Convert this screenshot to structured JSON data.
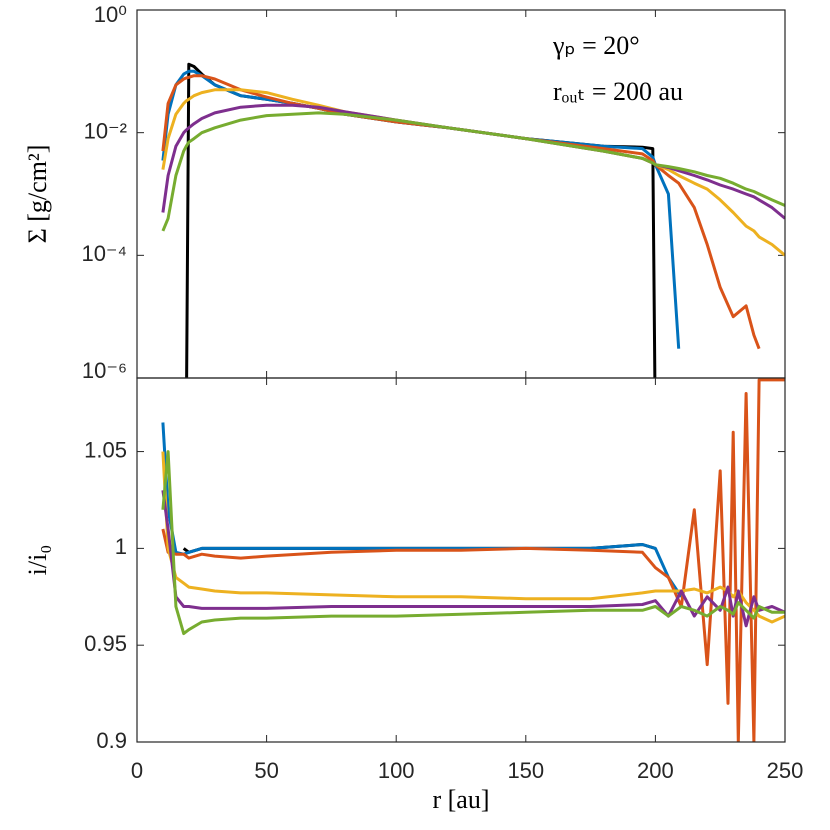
{
  "chart_data": [
    {
      "type": "line",
      "log": true,
      "ylabel": "Σ [g/cm²]",
      "annotations": [
        "γₚ = 20°",
        "rₒᵤₜ = 200 au"
      ],
      "xlim": [
        0,
        250
      ],
      "xticks": [
        0,
        50,
        100,
        150,
        200,
        250
      ],
      "ylim": [
        1e-06,
        1
      ],
      "yticks": [
        {
          "value": 1,
          "label": "10⁰"
        },
        {
          "value": 0.01,
          "label": "10⁻²"
        },
        {
          "value": 0.0001,
          "label": "10⁻⁴"
        },
        {
          "value": 1e-06,
          "label": "10⁻⁶"
        }
      ],
      "x": [
        10,
        12,
        15,
        18,
        19,
        20,
        22,
        25,
        30,
        40,
        50,
        60,
        70,
        80,
        100,
        120,
        150,
        180,
        195,
        199,
        200,
        205,
        209,
        215,
        220,
        225,
        230,
        235,
        238,
        240,
        245,
        250
      ],
      "series": [
        {
          "color": "#000000",
          "values": [
            null,
            null,
            null,
            null,
            1e-07,
            0.13,
            0.12,
            0.09,
            0.06,
            0.04,
            0.035,
            0.03,
            0.025,
            0.02,
            0.015,
            0.012,
            0.008,
            0.006,
            0.0058,
            0.0055,
            1e-07,
            null,
            null,
            null,
            null,
            null,
            null,
            null,
            null,
            null,
            null,
            null
          ]
        },
        {
          "color": "#0072bd",
          "values": [
            0.0035,
            0.02,
            0.06,
            0.09,
            0.095,
            0.1,
            0.1,
            0.085,
            0.06,
            0.04,
            0.035,
            0.03,
            0.025,
            0.02,
            0.015,
            0.012,
            0.008,
            0.006,
            0.0055,
            0.004,
            0.003,
            0.001,
            3e-06,
            null,
            null,
            null,
            null,
            null,
            null,
            null,
            null,
            null
          ]
        },
        {
          "color": "#d95319",
          "values": [
            0.005,
            0.03,
            0.06,
            0.075,
            0.078,
            0.08,
            0.085,
            0.085,
            0.075,
            0.05,
            0.038,
            0.03,
            0.025,
            0.02,
            0.015,
            0.012,
            0.008,
            0.0055,
            0.0045,
            0.0035,
            0.003,
            0.002,
            0.0015,
            0.0006,
            0.00015,
            3e-05,
            1e-05,
            1.5e-05,
            5e-06,
            3e-06,
            null,
            null
          ]
        },
        {
          "color": "#edb120",
          "values": [
            0.0025,
            0.008,
            0.02,
            0.03,
            0.033,
            0.035,
            0.04,
            0.045,
            0.05,
            0.05,
            0.045,
            0.035,
            0.028,
            0.022,
            0.016,
            0.012,
            0.008,
            0.005,
            0.0038,
            0.0032,
            0.003,
            0.0025,
            0.002,
            0.0015,
            0.0012,
            0.0008,
            0.0005,
            0.0003,
            0.00025,
            0.0002,
            0.00015,
            0.0001
          ]
        },
        {
          "color": "#7e2f8e",
          "values": [
            0.0005,
            0.002,
            0.006,
            0.01,
            0.011,
            0.012,
            0.014,
            0.017,
            0.021,
            0.026,
            0.028,
            0.028,
            0.026,
            0.022,
            0.016,
            0.012,
            0.008,
            0.005,
            0.0038,
            0.0032,
            0.003,
            0.0027,
            0.0024,
            0.002,
            0.0017,
            0.0014,
            0.0012,
            0.001,
            0.0009,
            0.0008,
            0.0006,
            0.0004
          ]
        },
        {
          "color": "#77ac30",
          "values": [
            0.00025,
            0.0004,
            0.002,
            0.005,
            0.006,
            0.007,
            0.008,
            0.01,
            0.012,
            0.016,
            0.019,
            0.02,
            0.021,
            0.02,
            0.016,
            0.012,
            0.008,
            0.005,
            0.0038,
            0.0032,
            0.003,
            0.0028,
            0.0026,
            0.0023,
            0.002,
            0.0018,
            0.0015,
            0.0012,
            0.0011,
            0.001,
            0.0008,
            0.00065
          ]
        }
      ]
    },
    {
      "type": "line",
      "ylabel": "i/i₀",
      "xlabel": "r [au]",
      "xlim": [
        0,
        250
      ],
      "xticks": [
        0,
        50,
        100,
        150,
        200,
        250
      ],
      "ylim": [
        0.9,
        1.088
      ],
      "yticks": [
        0.9,
        0.95,
        1,
        1.05
      ],
      "x": [
        10,
        12,
        15,
        18,
        20,
        25,
        30,
        40,
        50,
        75,
        100,
        125,
        150,
        175,
        195,
        200,
        205,
        210,
        215,
        220,
        225,
        228,
        230,
        232,
        235,
        238,
        240,
        245,
        250
      ],
      "series": [
        {
          "color": "#000000",
          "values": [
            null,
            null,
            null,
            1.0,
            0.998,
            1.0,
            1.0,
            1.0,
            1.0,
            1.0,
            1.0,
            1.0,
            1.0,
            1.0,
            1.002,
            1.0,
            null,
            null,
            null,
            null,
            null,
            null,
            null,
            null,
            null,
            null,
            null,
            null,
            null
          ]
        },
        {
          "color": "#0072bd",
          "values": [
            1.065,
            1.02,
            0.998,
            0.997,
            0.998,
            1.0,
            1.0,
            1.0,
            1.0,
            1.0,
            1.0,
            1.0,
            1.0,
            1.0,
            1.002,
            1.0,
            0.985,
            0.975,
            null,
            null,
            null,
            null,
            null,
            null,
            null,
            null,
            null,
            null,
            null
          ]
        },
        {
          "color": "#d95319",
          "values": [
            1.01,
            0.998,
            0.997,
            0.997,
            0.995,
            0.997,
            0.996,
            0.995,
            0.996,
            0.998,
            0.999,
            0.999,
            1.0,
            0.999,
            0.998,
            0.99,
            0.985,
            0.97,
            1.02,
            0.94,
            1.04,
            0.92,
            1.06,
            0.9,
            1.08,
            0.9,
            1.087,
            1.087,
            1.087
          ]
        },
        {
          "color": "#edb120",
          "values": [
            1.05,
            1.0,
            0.985,
            0.982,
            0.98,
            0.979,
            0.978,
            0.977,
            0.977,
            0.976,
            0.975,
            0.975,
            0.974,
            0.974,
            0.977,
            0.978,
            0.978,
            0.978,
            0.979,
            0.977,
            0.98,
            0.978,
            0.975,
            0.978,
            0.972,
            0.968,
            0.965,
            0.962,
            0.965
          ]
        },
        {
          "color": "#7e2f8e",
          "values": [
            1.03,
            1.01,
            0.975,
            0.97,
            0.97,
            0.969,
            0.969,
            0.969,
            0.969,
            0.97,
            0.97,
            0.97,
            0.97,
            0.97,
            0.971,
            0.973,
            0.965,
            0.978,
            0.965,
            0.975,
            0.968,
            0.98,
            0.965,
            0.978,
            0.96,
            0.975,
            0.968,
            0.97,
            0.967
          ]
        },
        {
          "color": "#77ac30",
          "values": [
            1.02,
            1.05,
            0.97,
            0.956,
            0.958,
            0.962,
            0.963,
            0.964,
            0.964,
            0.965,
            0.965,
            0.966,
            0.967,
            0.968,
            0.968,
            0.97,
            0.965,
            0.97,
            0.968,
            0.965,
            0.97,
            0.968,
            0.966,
            0.972,
            0.968,
            0.964,
            0.97,
            0.967,
            0.967
          ]
        }
      ]
    }
  ]
}
